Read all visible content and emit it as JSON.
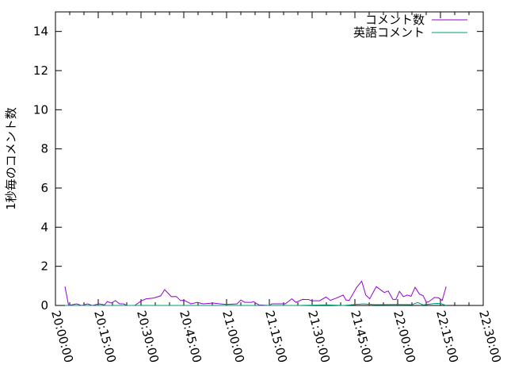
{
  "chart_data": {
    "type": "line",
    "title": "",
    "xlabel": "",
    "ylabel": "1秒毎のコメント数",
    "xlim": [
      "20:00:00",
      "22:30:00"
    ],
    "ylim": [
      0,
      15
    ],
    "x_ticks": [
      "20:00:00",
      "20:15:00",
      "20:30:00",
      "20:45:00",
      "21:00:00",
      "21:15:00",
      "21:30:00",
      "21:45:00",
      "22:00:00",
      "22:15:00",
      "22:30:00"
    ],
    "y_ticks": [
      "0",
      "2",
      "4",
      "6",
      "8",
      "10",
      "12",
      "14"
    ],
    "grid": false,
    "legend_position": "top-right",
    "series": [
      {
        "name": "コメント数",
        "color": "#9400d3",
        "x": [
          "20:03:20",
          "20:04:36",
          "20:07:24",
          "20:09:12",
          "20:11:18",
          "20:12:54",
          "20:15:18",
          "20:17:12",
          "20:18:12",
          "20:19:36",
          "20:21:00",
          "20:22:30",
          "20:23:54",
          "20:25:00",
          "20:27:48",
          "20:30:18",
          "20:31:48",
          "20:34:30",
          "20:36:54",
          "20:38:18",
          "20:40:36",
          "20:42:24",
          "20:43:48",
          "20:45:12",
          "20:47:30",
          "20:49:48",
          "20:51:42",
          "20:55:24",
          "20:57:42",
          "21:00:00",
          "21:03:42",
          "21:05:00",
          "21:06:24",
          "21:08:48",
          "21:09:24",
          "21:11:18",
          "21:15:00",
          "21:15:54",
          "21:20:36",
          "21:22:54",
          "21:24:18",
          "21:26:36",
          "21:28:54",
          "21:29:48",
          "21:32:36",
          "21:34:54",
          "21:36:24",
          "21:38:36",
          "21:40:54",
          "21:41:54",
          "21:43:00",
          "21:45:36",
          "21:47:24",
          "21:48:48",
          "21:50:12",
          "21:52:30",
          "21:55:18",
          "21:56:42",
          "21:58:18",
          "21:59:24",
          "22:00:36",
          "22:02:00",
          "22:03:18",
          "22:04:42",
          "22:06:06",
          "22:07:36",
          "22:08:54",
          "22:10:06",
          "22:11:00",
          "22:12:54",
          "22:14:18",
          "22:15:36",
          "22:17:00"
        ],
        "y": [
          0.97,
          0,
          0.08,
          0,
          0.08,
          0,
          0.08,
          0.03,
          0.2,
          0.12,
          0.25,
          0.08,
          0.08,
          0,
          0,
          0.25,
          0.34,
          0.38,
          0.49,
          0.81,
          0.45,
          0.46,
          0.25,
          0.26,
          0.08,
          0.16,
          0.08,
          0.12,
          0.08,
          0.05,
          0.08,
          0.28,
          0.16,
          0.16,
          0.2,
          0.03,
          0,
          0.08,
          0.08,
          0.34,
          0.16,
          0.31,
          0.3,
          0.24,
          0.24,
          0.43,
          0.26,
          0.38,
          0.53,
          0.28,
          0.26,
          0.92,
          1.24,
          0.53,
          0.34,
          0.96,
          0.66,
          0.74,
          0.31,
          0.31,
          0.72,
          0.45,
          0.53,
          0.47,
          0.93,
          0.58,
          0.5,
          0.16,
          0.2,
          0.41,
          0.39,
          0.26,
          0.97
        ]
      },
      {
        "name": "英語コメント",
        "color": "#009e73",
        "x": [
          "20:03:20",
          "20:30:00",
          "20:40:00",
          "20:55:00",
          "21:10:00",
          "21:25:00",
          "21:35:00",
          "21:41:00",
          "21:45:00",
          "21:48:00",
          "21:52:00",
          "22:00:00",
          "22:05:00",
          "22:07:00",
          "22:09:00",
          "22:13:00",
          "22:15:00",
          "22:17:00"
        ],
        "y": [
          0,
          0,
          0,
          0,
          0,
          0,
          0.03,
          0,
          0.05,
          0.08,
          0.04,
          0.05,
          0.04,
          0.15,
          0.03,
          0.1,
          0.1,
          0
        ]
      }
    ]
  }
}
